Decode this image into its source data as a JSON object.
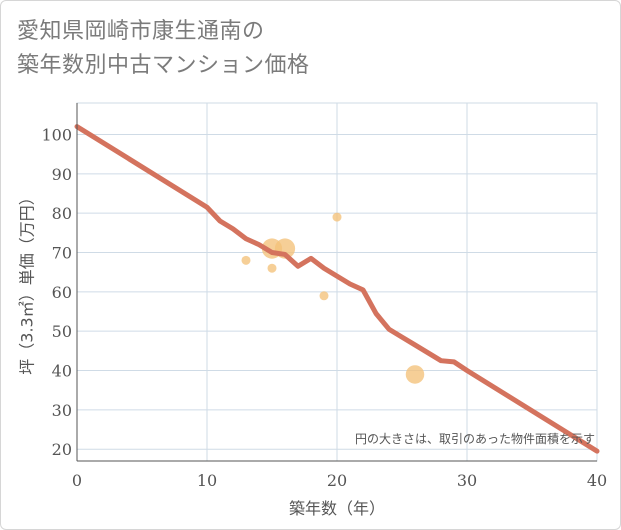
{
  "page": {
    "title_line1": "愛知県岡崎市康生通南の",
    "title_line2": "築年数別中古マンション価格"
  },
  "chart_data": {
    "type": "scatter",
    "title": "愛知県岡崎市康生通南の築年数別中古マンション価格",
    "xlabel": "築年数（年）",
    "ylabel": "坪（3.3㎡）単価（万円）",
    "xlim": [
      0,
      40
    ],
    "ylim": [
      17,
      108
    ],
    "x_ticks": [
      0,
      10,
      20,
      30,
      40
    ],
    "y_ticks": [
      20,
      30,
      40,
      50,
      60,
      70,
      80,
      90,
      100
    ],
    "grid": true,
    "note": "円の大きさは、取引のあった物件面積を示す",
    "colors": {
      "line": "#d4735e",
      "bubble": "#f3c27a",
      "grid": "#cfdbe6",
      "axis": "#555555"
    },
    "series": [
      {
        "name": "trend",
        "kind": "line",
        "x": [
          0,
          10,
          11,
          12,
          13,
          14,
          15,
          16,
          17,
          18,
          19,
          20,
          21,
          22,
          23,
          24,
          25,
          26,
          27,
          28,
          29,
          30,
          40
        ],
        "y": [
          102,
          81.5,
          78,
          76,
          73.5,
          72,
          70,
          69.5,
          66.5,
          68.5,
          66,
          64,
          62,
          60.5,
          54.5,
          50.5,
          48.5,
          46.5,
          44.5,
          42.5,
          42.2,
          40,
          19.5
        ]
      },
      {
        "name": "transactions",
        "kind": "bubble",
        "points": [
          {
            "x": 13,
            "y": 68,
            "size": 1
          },
          {
            "x": 15,
            "y": 71,
            "size": 3
          },
          {
            "x": 15,
            "y": 66,
            "size": 1
          },
          {
            "x": 16,
            "y": 71,
            "size": 3
          },
          {
            "x": 19,
            "y": 59,
            "size": 1
          },
          {
            "x": 20,
            "y": 79,
            "size": 1
          },
          {
            "x": 26,
            "y": 39,
            "size": 2.5
          }
        ]
      }
    ]
  }
}
